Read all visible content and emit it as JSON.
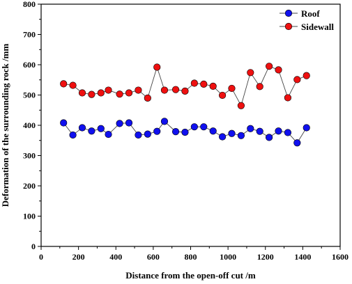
{
  "chart_data": {
    "type": "line",
    "xlabel": "Distance from the open-off cut /m",
    "ylabel": "Deformation of the surrounding rock /mm",
    "xlim": [
      0,
      1600
    ],
    "ylim": [
      0,
      800
    ],
    "x_ticks": [
      "0",
      "200",
      "400",
      "600",
      "800",
      "1000",
      "1200",
      "1400",
      "1600"
    ],
    "y_ticks": [
      "0",
      "100",
      "200",
      "300",
      "400",
      "500",
      "600",
      "700",
      "800"
    ],
    "legend_position": "top-right",
    "grid": false,
    "series": [
      {
        "name": "Roof",
        "color": "#1010ee",
        "points": [
          [
            120,
            408
          ],
          [
            170,
            368
          ],
          [
            220,
            392
          ],
          [
            270,
            381
          ],
          [
            320,
            389
          ],
          [
            360,
            370
          ],
          [
            420,
            406
          ],
          [
            470,
            408
          ],
          [
            520,
            368
          ],
          [
            570,
            371
          ],
          [
            620,
            380
          ],
          [
            660,
            413
          ],
          [
            720,
            379
          ],
          [
            770,
            377
          ],
          [
            820,
            395
          ],
          [
            870,
            395
          ],
          [
            920,
            381
          ],
          [
            970,
            362
          ],
          [
            1020,
            373
          ],
          [
            1070,
            366
          ],
          [
            1120,
            389
          ],
          [
            1170,
            380
          ],
          [
            1220,
            360
          ],
          [
            1270,
            381
          ],
          [
            1320,
            376
          ],
          [
            1370,
            342
          ],
          [
            1420,
            392
          ]
        ]
      },
      {
        "name": "Sidewall",
        "color": "#ee1010",
        "points": [
          [
            120,
            537
          ],
          [
            170,
            532
          ],
          [
            220,
            507
          ],
          [
            270,
            502
          ],
          [
            320,
            507
          ],
          [
            360,
            516
          ],
          [
            420,
            503
          ],
          [
            470,
            507
          ],
          [
            520,
            516
          ],
          [
            570,
            490
          ],
          [
            620,
            592
          ],
          [
            660,
            516
          ],
          [
            720,
            518
          ],
          [
            770,
            513
          ],
          [
            820,
            539
          ],
          [
            870,
            536
          ],
          [
            920,
            529
          ],
          [
            970,
            499
          ],
          [
            1020,
            522
          ],
          [
            1070,
            465
          ],
          [
            1120,
            574
          ],
          [
            1170,
            528
          ],
          [
            1220,
            595
          ],
          [
            1270,
            583
          ],
          [
            1320,
            491
          ],
          [
            1370,
            551
          ],
          [
            1420,
            564
          ]
        ]
      }
    ]
  }
}
